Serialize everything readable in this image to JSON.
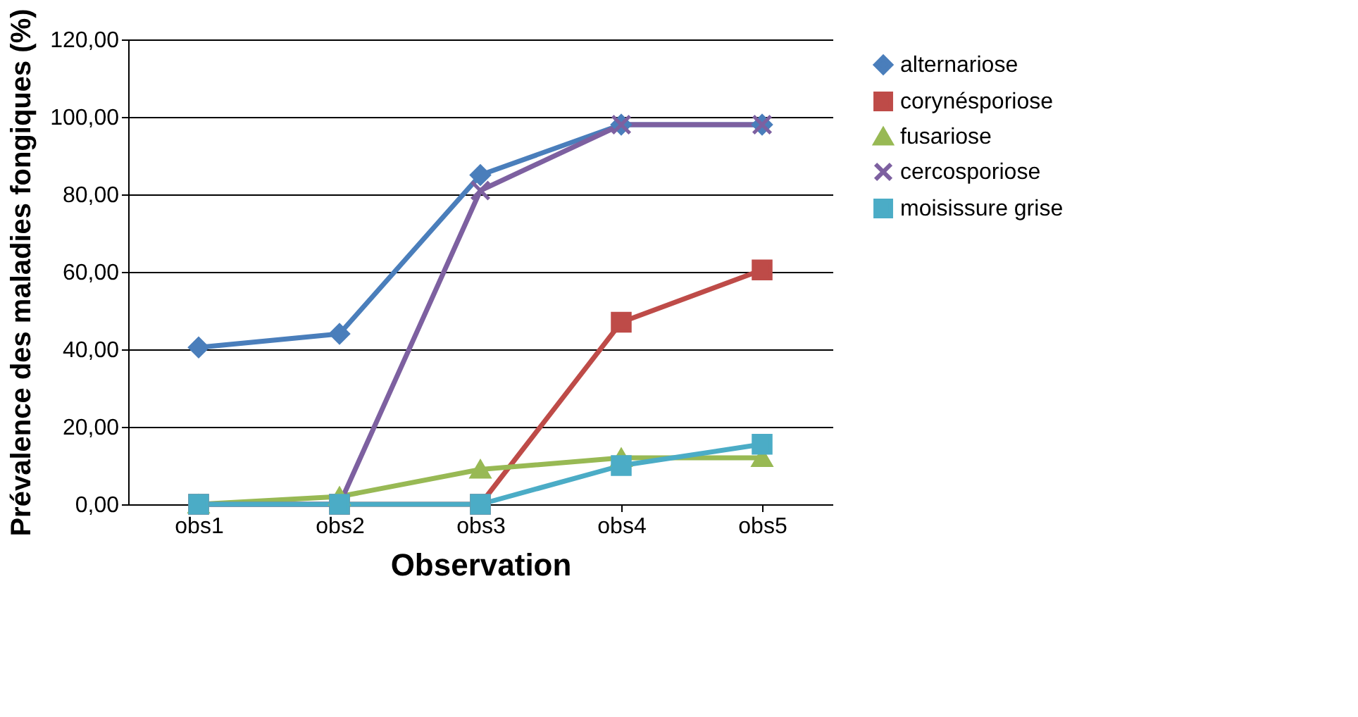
{
  "chart_data": {
    "type": "line",
    "xlabel": "Observation",
    "ylabel": "Prévalence des maladies fongiques (%)",
    "categories": [
      "obs1",
      "obs2",
      "obs3",
      "obs4",
      "obs5"
    ],
    "series": [
      {
        "name": "alternariose",
        "color": "#4a7ebb",
        "marker": "diamond",
        "values": [
          40.5,
          44,
          85,
          98,
          98
        ]
      },
      {
        "name": "corynésporiose",
        "color": "#be4b48",
        "marker": "square",
        "values": [
          0,
          0,
          0,
          47,
          60.5
        ]
      },
      {
        "name": "fusariose",
        "color": "#98b954",
        "marker": "triangle",
        "values": [
          0,
          2,
          9,
          12,
          12
        ]
      },
      {
        "name": "cercosporiose",
        "color": "#7d60a0",
        "marker": "cross",
        "values": [
          0,
          0,
          81,
          98,
          98
        ]
      },
      {
        "name": "moisissure grise",
        "color": "#4bacc6",
        "marker": "square",
        "values": [
          0,
          0,
          0,
          10,
          15.5
        ]
      }
    ],
    "ylim": [
      0,
      120
    ],
    "yticks": [
      {
        "value": 0,
        "label": "0,00"
      },
      {
        "value": 20,
        "label": "20,00"
      },
      {
        "value": 40,
        "label": "40,00"
      },
      {
        "value": 60,
        "label": "60,00"
      },
      {
        "value": 80,
        "label": "80,00"
      },
      {
        "value": 100,
        "label": "100,00"
      },
      {
        "value": 120,
        "label": "120,00"
      }
    ],
    "grid": "y",
    "legend": "right"
  }
}
